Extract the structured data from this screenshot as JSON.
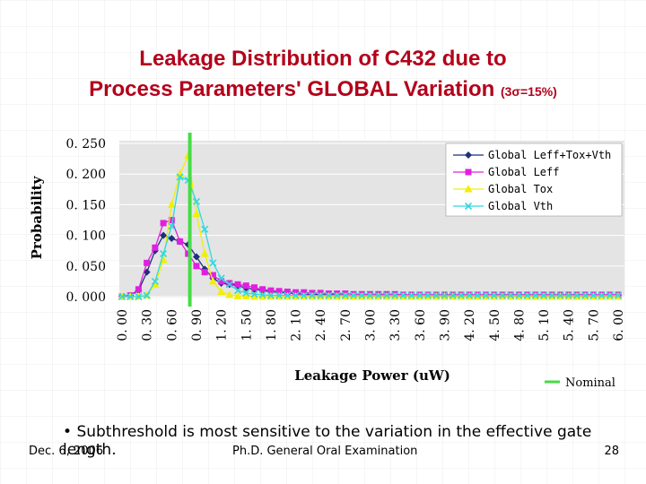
{
  "slide": {
    "title_line1": "Leakage Distribution of C432 due to",
    "title_line2": "Process Parameters' GLOBAL Variation",
    "title_suffix": "(3σ=15%)",
    "bullet": "Subthreshold is most sensitive to the variation in the effective gate length.",
    "footer_date": "Dec. 6, 2006",
    "footer_center": "Ph.D. General Oral Examination",
    "footer_page": "28",
    "title_color": "#b3001b"
  },
  "chart_data": {
    "type": "line",
    "xlabel": "Leakage Power (uW)",
    "ylabel": "Probability",
    "xlim": [
      0,
      6.0
    ],
    "ylim": [
      0,
      0.25
    ],
    "yticks": [
      "0. 000",
      "0. 050",
      "0. 100",
      "0. 150",
      "0. 200",
      "0. 250"
    ],
    "ytick_values": [
      0,
      0.05,
      0.1,
      0.15,
      0.2,
      0.25
    ],
    "xticks": [
      "0. 00",
      "0. 30",
      "0. 60",
      "0. 90",
      "1. 20",
      "1. 50",
      "1. 80",
      "2. 10",
      "2. 40",
      "2. 70",
      "3. 00",
      "3. 30",
      "3. 60",
      "3. 90",
      "4. 20",
      "4. 50",
      "4. 80",
      "5. 10",
      "5. 40",
      "5. 70",
      "6. 00"
    ],
    "xtick_values": [
      0,
      0.3,
      0.6,
      0.9,
      1.2,
      1.5,
      1.8,
      2.1,
      2.4,
      2.7,
      3.0,
      3.3,
      3.6,
      3.9,
      4.2,
      4.5,
      4.8,
      5.1,
      5.4,
      5.7,
      6.0
    ],
    "legend_position": "top-right",
    "x": [
      0,
      0.1,
      0.2,
      0.3,
      0.4,
      0.5,
      0.6,
      0.7,
      0.8,
      0.9,
      1.0,
      1.1,
      1.2,
      1.3,
      1.4,
      1.5,
      1.6,
      1.7,
      1.8,
      1.9,
      2.0,
      2.1,
      2.2,
      2.3,
      2.4,
      2.5,
      2.6,
      2.7,
      2.8,
      2.9,
      3.0,
      3.1,
      3.2,
      3.3,
      3.4,
      3.5,
      3.6,
      3.7,
      3.8,
      3.9,
      4.0,
      4.1,
      4.2,
      4.3,
      4.4,
      4.5,
      4.6,
      4.7,
      4.8,
      4.9,
      5.0,
      5.1,
      5.2,
      5.3,
      5.4,
      5.5,
      5.6,
      5.7,
      5.8,
      5.9,
      6.0
    ],
    "series": [
      {
        "name": "Global Leff+Tox+Vth",
        "color": "#1f2f7a",
        "marker": "diamond",
        "values": [
          0,
          0.002,
          0.01,
          0.04,
          0.075,
          0.1,
          0.095,
          0.09,
          0.085,
          0.065,
          0.045,
          0.03,
          0.022,
          0.02,
          0.018,
          0.014,
          0.012,
          0.01,
          0.008,
          0.007,
          0.006,
          0.005,
          0.004,
          0.004,
          0.003,
          0.003,
          0.003,
          0.002,
          0.002,
          0.002,
          0.002,
          0.002,
          0.002,
          0.002,
          0.002,
          0.002,
          0.002,
          0.002,
          0.002,
          0.002,
          0.002,
          0.002,
          0.002,
          0.002,
          0.002,
          0.002,
          0.002,
          0.002,
          0.002,
          0.002,
          0.002,
          0.002,
          0.002,
          0.002,
          0.002,
          0.002,
          0.002,
          0.002,
          0.002,
          0.002,
          0.002
        ]
      },
      {
        "name": "Global Leff",
        "color": "#e020e0",
        "marker": "square",
        "values": [
          0,
          0.002,
          0.012,
          0.055,
          0.08,
          0.12,
          0.125,
          0.09,
          0.07,
          0.05,
          0.04,
          0.035,
          0.025,
          0.022,
          0.02,
          0.018,
          0.015,
          0.012,
          0.01,
          0.009,
          0.008,
          0.007,
          0.007,
          0.006,
          0.006,
          0.005,
          0.005,
          0.005,
          0.004,
          0.004,
          0.004,
          0.004,
          0.004,
          0.004,
          0.003,
          0.003,
          0.003,
          0.003,
          0.003,
          0.003,
          0.003,
          0.003,
          0.003,
          0.003,
          0.003,
          0.003,
          0.003,
          0.003,
          0.003,
          0.003,
          0.003,
          0.003,
          0.003,
          0.003,
          0.003,
          0.003,
          0.003,
          0.003,
          0.003,
          0.003,
          0.003
        ]
      },
      {
        "name": "Global Tox",
        "color": "#f0f000",
        "marker": "triangle",
        "values": [
          0,
          0,
          0,
          0.002,
          0.02,
          0.06,
          0.15,
          0.2,
          0.23,
          0.135,
          0.07,
          0.025,
          0.008,
          0.003,
          0.001,
          0.001,
          0,
          0,
          0,
          0,
          0,
          0,
          0,
          0,
          0,
          0,
          0,
          0,
          0,
          0,
          0,
          0,
          0,
          0,
          0,
          0,
          0,
          0,
          0,
          0,
          0,
          0,
          0,
          0,
          0,
          0,
          0,
          0,
          0,
          0,
          0,
          0,
          0,
          0,
          0,
          0,
          0,
          0,
          0,
          0,
          0
        ]
      },
      {
        "name": "Global Vth",
        "color": "#30d8e0",
        "marker": "x",
        "values": [
          0,
          0,
          0,
          0.002,
          0.025,
          0.07,
          0.115,
          0.195,
          0.19,
          0.155,
          0.11,
          0.055,
          0.03,
          0.02,
          0.01,
          0.006,
          0.004,
          0.003,
          0.002,
          0.002,
          0.002,
          0.002,
          0.002,
          0.002,
          0.002,
          0.002,
          0.002,
          0.002,
          0.002,
          0.002,
          0.002,
          0.002,
          0.002,
          0.002,
          0.002,
          0.002,
          0.002,
          0.002,
          0.002,
          0.002,
          0.002,
          0.002,
          0.002,
          0.002,
          0.002,
          0.002,
          0.002,
          0.002,
          0.002,
          0.002,
          0.002,
          0.002,
          0.002,
          0.002,
          0.002,
          0.002,
          0.002,
          0.002,
          0.002,
          0.002,
          0.002
        ]
      }
    ],
    "nominal": {
      "label": "Nominal",
      "x": 0.82,
      "color": "#44dd44"
    }
  }
}
